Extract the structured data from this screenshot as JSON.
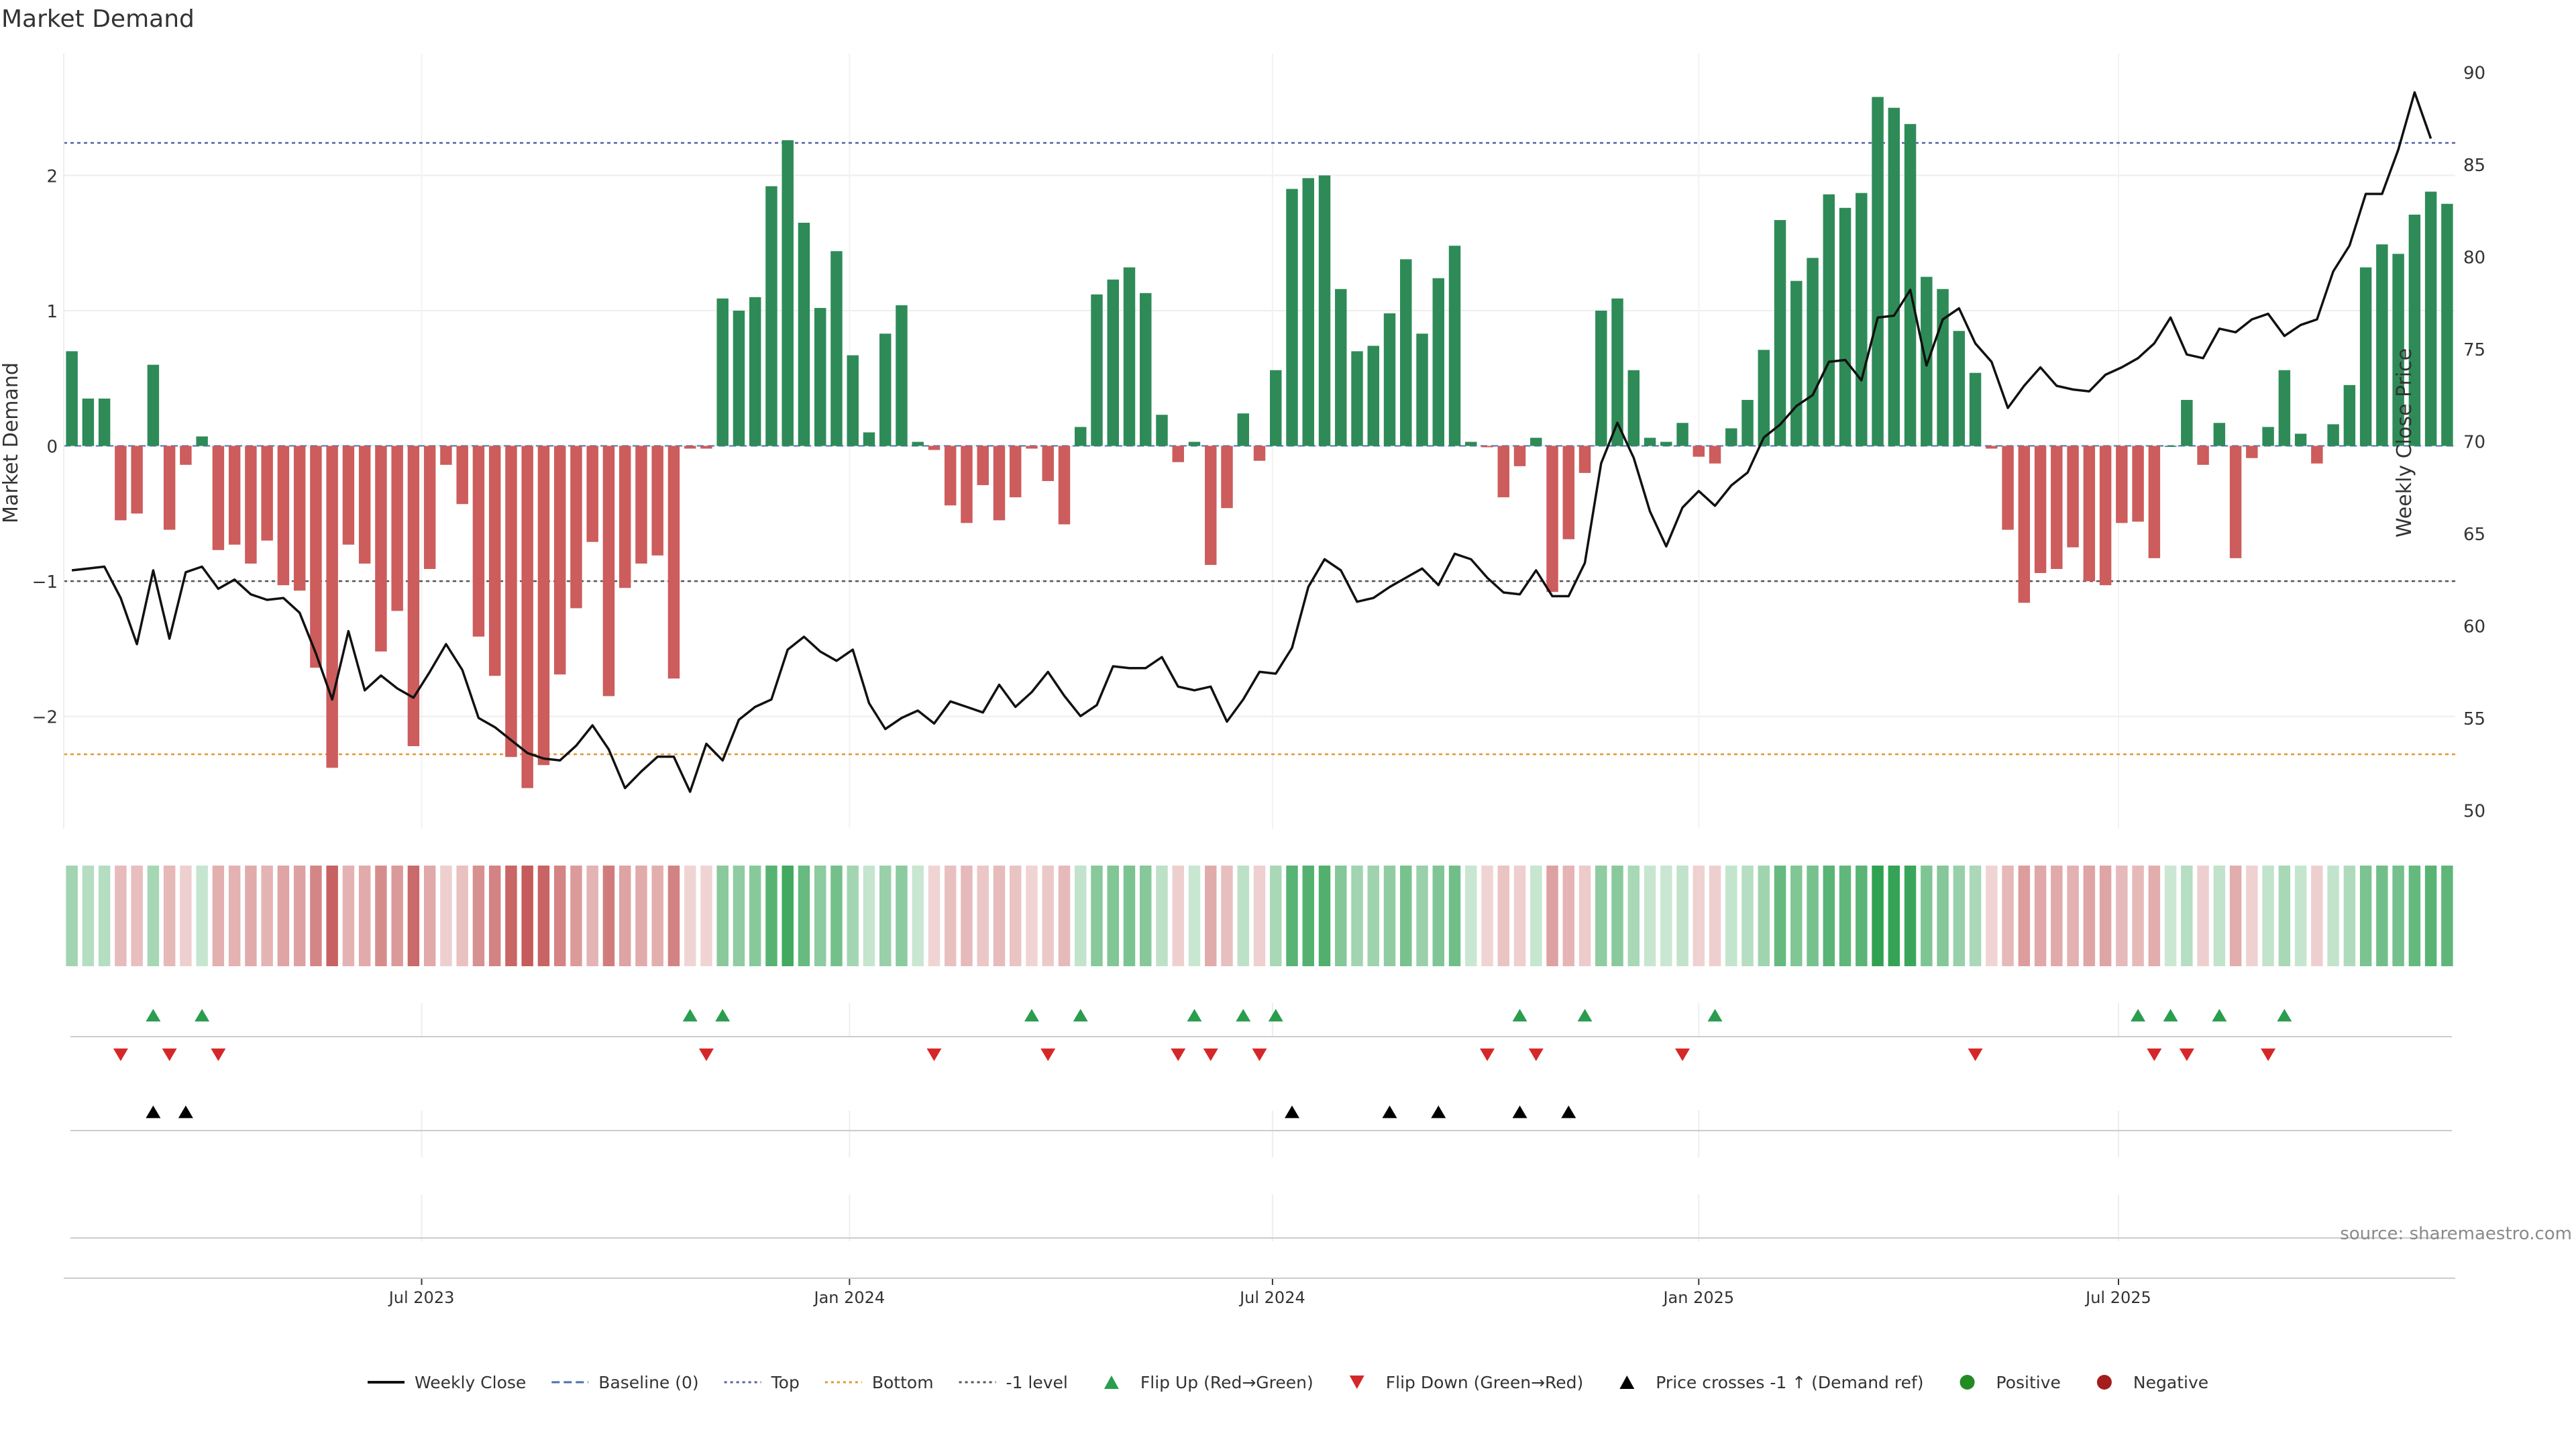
{
  "chart_data": {
    "type": "bar",
    "title": "Market Demand",
    "ylabel_left": "Market Demand",
    "ylabel_right": "Weekly Close Price",
    "source": "source: sharemaestro.com",
    "ylim_left": [
      -2.83,
      2.9
    ],
    "ylim_right": [
      49,
      91
    ],
    "yticks_left": [
      {
        "v": 2,
        "label": "2"
      },
      {
        "v": 1,
        "label": "1"
      },
      {
        "v": 0,
        "label": "0"
      },
      {
        "v": -1,
        "label": "−1"
      },
      {
        "v": -2,
        "label": "−2"
      }
    ],
    "yticks_right": [
      {
        "v": 90,
        "label": "90"
      },
      {
        "v": 85,
        "label": "85"
      },
      {
        "v": 80,
        "label": "80"
      },
      {
        "v": 75,
        "label": "75"
      },
      {
        "v": 70,
        "label": "70"
      },
      {
        "v": 65,
        "label": "65"
      },
      {
        "v": 60,
        "label": "60"
      },
      {
        "v": 55,
        "label": "55"
      },
      {
        "v": 50,
        "label": "50"
      }
    ],
    "date_ticks": [
      {
        "i": 21.5,
        "label": "Jul 2023"
      },
      {
        "i": 47.8,
        "label": "Jan 2024"
      },
      {
        "i": 73.8,
        "label": "Jul 2024"
      },
      {
        "i": 100,
        "label": "Jan 2025"
      },
      {
        "i": 125.8,
        "label": "Jul 2025"
      }
    ],
    "reference_lines": [
      {
        "name": "Top",
        "value": 2.24,
        "color": "#5560a8"
      },
      {
        "name": "Bottom",
        "value": -2.28,
        "color": "#e0962e"
      },
      {
        "name": "-1 level",
        "value": -1,
        "color": "#555555"
      }
    ],
    "demand": [
      0.7,
      0.35,
      0.35,
      -0.55,
      -0.5,
      0.6,
      -0.62,
      -0.14,
      0.07,
      -0.77,
      -0.73,
      -0.87,
      -0.7,
      -1.03,
      -1.07,
      -1.64,
      -2.38,
      -0.73,
      -0.87,
      -1.52,
      -1.22,
      -2.22,
      -0.91,
      -0.14,
      -0.43,
      -1.41,
      -1.7,
      -2.3,
      -2.53,
      -2.36,
      -1.69,
      -1.2,
      -0.71,
      -1.85,
      -1.05,
      -0.87,
      -0.81,
      -1.72,
      -0.02,
      -0.02,
      1.09,
      1.0,
      1.1,
      1.92,
      2.26,
      1.65,
      1.02,
      1.44,
      0.67,
      0.1,
      0.83,
      1.04,
      0.03,
      -0.03,
      -0.44,
      -0.57,
      -0.29,
      -0.55,
      -0.38,
      -0.02,
      -0.26,
      -0.58,
      0.14,
      1.12,
      1.23,
      1.32,
      1.13,
      0.23,
      -0.12,
      0.03,
      -0.88,
      -0.46,
      0.24,
      -0.11,
      0.56,
      1.9,
      1.98,
      2.0,
      1.16,
      0.7,
      0.74,
      0.98,
      1.38,
      0.83,
      1.24,
      1.48,
      0.03,
      -0.01,
      -0.38,
      -0.15,
      0.06,
      -1.08,
      -0.69,
      -0.2,
      1.0,
      1.09,
      0.56,
      0.06,
      0.03,
      0.17,
      -0.08,
      -0.13,
      0.13,
      0.34,
      0.71,
      1.67,
      1.22,
      1.39,
      1.86,
      1.76,
      1.87,
      2.58,
      2.5,
      2.38,
      1.25,
      1.16,
      0.85,
      0.54,
      -0.02,
      -0.62,
      -1.16,
      -0.94,
      -0.91,
      -0.75,
      -1.0,
      -1.03,
      -0.57,
      -0.56,
      -0.83,
      0.0,
      0.34,
      -0.14,
      0.17,
      -0.83,
      -0.09,
      0.14,
      0.56,
      0.09,
      -0.13,
      0.16,
      0.45,
      1.32,
      1.49,
      1.42,
      1.71,
      1.88,
      1.79
    ],
    "price": [
      63.0,
      63.1,
      63.2,
      61.5,
      59.0,
      63.0,
      59.3,
      62.9,
      63.2,
      62.0,
      62.5,
      61.7,
      61.4,
      61.5,
      60.7,
      58.5,
      56.0,
      59.7,
      56.5,
      57.3,
      56.6,
      56.1,
      57.5,
      59.0,
      57.6,
      55.0,
      54.5,
      53.8,
      53.1,
      52.8,
      52.7,
      53.5,
      54.6,
      53.3,
      51.2,
      52.1,
      52.9,
      52.9,
      51.0,
      53.6,
      52.7,
      54.9,
      55.6,
      56.0,
      58.7,
      59.4,
      58.6,
      58.1,
      58.7,
      55.8,
      54.4,
      55.0,
      55.4,
      54.7,
      55.9,
      55.6,
      55.3,
      56.8,
      55.6,
      56.4,
      57.5,
      56.2,
      55.1,
      55.7,
      57.8,
      57.7,
      57.7,
      58.3,
      56.7,
      56.5,
      56.7,
      54.8,
      56.0,
      57.5,
      57.4,
      58.8,
      62.1,
      63.6,
      63.0,
      61.3,
      61.5,
      62.1,
      62.6,
      63.1,
      62.2,
      63.9,
      63.6,
      62.6,
      61.8,
      61.7,
      63.0,
      61.6,
      61.6,
      63.4,
      68.8,
      71.0,
      69.1,
      66.2,
      64.3,
      66.4,
      67.3,
      66.5,
      67.6,
      68.3,
      70.2,
      70.9,
      71.9,
      72.5,
      74.3,
      74.4,
      73.3,
      76.7,
      76.8,
      78.2,
      74.1,
      76.6,
      77.2,
      75.3,
      74.3,
      71.8,
      73.0,
      74.0,
      73.0,
      72.8,
      72.7,
      73.6,
      74.0,
      74.5,
      75.3,
      76.7,
      74.7,
      74.5,
      76.1,
      75.9,
      76.6,
      76.9,
      75.7,
      76.3,
      76.6,
      79.2,
      80.6,
      83.4,
      83.4,
      85.8,
      88.9,
      86.4
    ],
    "flip_up": [
      5,
      8,
      38,
      40,
      59,
      62,
      69,
      72,
      74,
      89,
      93,
      101,
      127,
      129,
      132,
      136
    ],
    "flip_down": [
      3,
      6,
      9,
      39,
      53,
      60,
      68,
      70,
      73,
      87,
      90,
      99,
      117,
      128,
      130,
      135
    ],
    "price_cross": [
      5,
      7,
      75,
      81,
      84,
      89,
      92
    ],
    "legend": [
      {
        "label": "Weekly Close",
        "kind": "line",
        "color": "#111111"
      },
      {
        "label": "Baseline (0)",
        "kind": "dash",
        "color": "#4a6fb0"
      },
      {
        "label": "Top",
        "kind": "dot",
        "color": "#5560a8"
      },
      {
        "label": "Bottom",
        "kind": "dot",
        "color": "#e0962e"
      },
      {
        "label": "-1 level",
        "kind": "dot",
        "color": "#555555"
      },
      {
        "label": "Flip Up (Red→Green)",
        "kind": "up",
        "color": "#2a9d4e"
      },
      {
        "label": "Flip Down (Green→Red)",
        "kind": "down",
        "color": "#d62728"
      },
      {
        "label": "Price crosses -1 ↑ (Demand ref)",
        "kind": "up",
        "color": "#000000"
      },
      {
        "label": "Positive",
        "kind": "circle",
        "color": "#228b22"
      },
      {
        "label": "Negative",
        "kind": "circle",
        "color": "#a51c1c"
      }
    ],
    "colors": {
      "positive": "#2e8b57",
      "negative": "#cd5c5c",
      "price": "#111111"
    }
  }
}
